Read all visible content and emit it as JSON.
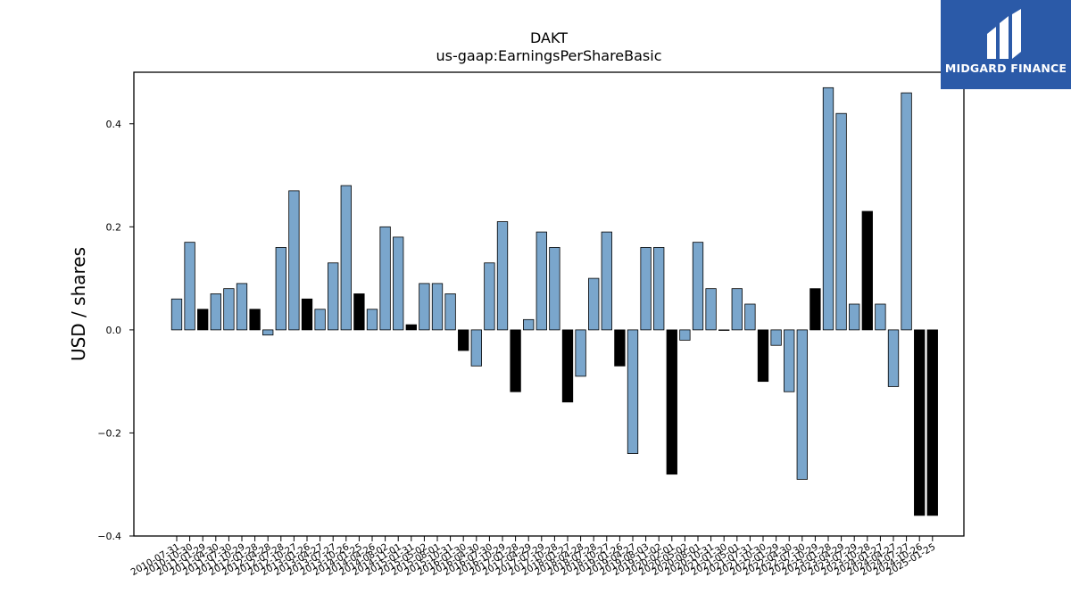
{
  "brand": {
    "name": "MIDGARD FINANCE",
    "bg_color": "#2b5aa8"
  },
  "chart_data": {
    "type": "bar",
    "title": "DAKT",
    "subtitle": "us-gaap:EarningsPerShareBasic",
    "xlabel": "",
    "ylabel": "USD / shares",
    "ylim": [
      -0.4,
      0.5
    ],
    "yticks": [
      -0.4,
      -0.2,
      0.0,
      0.2,
      0.4
    ],
    "ytick_labels": [
      "−0.4",
      "−0.2",
      "0.0",
      "0.2",
      "0.4"
    ],
    "grid": false,
    "colors": {
      "quarterly": "#7aa6cc",
      "annual": "#000000",
      "edge": "#000000"
    },
    "categories": [
      "2010-07-31",
      "2010-10-30",
      "2011-01-29",
      "2011-04-30",
      "2011-07-30",
      "2011-10-29",
      "2012-01-28",
      "2012-04-28",
      "2012-07-28",
      "2012-10-27",
      "2013-01-26",
      "2013-04-27",
      "2013-07-27",
      "2013-10-26",
      "2014-01-25",
      "2014-04-26",
      "2014-08-02",
      "2014-11-01",
      "2015-01-31",
      "2015-05-02",
      "2015-08-01",
      "2015-10-31",
      "2016-01-30",
      "2016-04-30",
      "2016-07-30",
      "2016-10-29",
      "2017-01-28",
      "2017-04-29",
      "2017-07-29",
      "2017-10-28",
      "2018-01-27",
      "2018-04-28",
      "2018-07-28",
      "2018-10-27",
      "2019-01-26",
      "2019-04-27",
      "2019-08-03",
      "2019-11-02",
      "2020-02-01",
      "2020-05-02",
      "2020-08-01",
      "2020-10-31",
      "2021-01-30",
      "2021-05-01",
      "2021-07-31",
      "2021-10-30",
      "2022-01-29",
      "2022-04-30",
      "2022-07-30",
      "2022-10-29",
      "2023-01-28",
      "2023-04-29",
      "2023-07-29",
      "2023-10-28",
      "2024-01-27",
      "2024-04-27",
      "2024-07-27",
      "2024-10-26",
      "2025-01-25"
    ],
    "series": [
      {
        "values": [
          0.06,
          0.17,
          0.04,
          0.07,
          0.08,
          0.09,
          0.04,
          -0.01,
          0.16,
          0.27,
          0.06,
          0.04,
          0.13,
          0.28,
          0.07,
          0.04,
          0.2,
          0.18,
          0.01,
          0.09,
          0.09,
          0.07,
          -0.04,
          -0.07,
          0.13,
          0.21,
          -0.12,
          0.02,
          0.19,
          0.16,
          -0.14,
          -0.09,
          0.1,
          0.19,
          -0.07,
          -0.24,
          0.16,
          0.16,
          -0.28,
          -0.02,
          0.17,
          0.08,
          0.0,
          0.08,
          0.05,
          -0.1,
          -0.03,
          -0.12,
          -0.29,
          0.08,
          0.47,
          0.42,
          0.05,
          0.23,
          0.05,
          -0.11,
          0.46,
          -0.36,
          -0.36
        ],
        "annual": [
          0,
          0,
          1,
          0,
          0,
          0,
          1,
          0,
          0,
          0,
          1,
          0,
          0,
          0,
          1,
          0,
          0,
          0,
          1,
          0,
          0,
          0,
          1,
          0,
          0,
          0,
          1,
          0,
          0,
          0,
          1,
          0,
          0,
          0,
          1,
          0,
          0,
          0,
          1,
          0,
          0,
          0,
          1,
          0,
          0,
          1,
          0,
          0,
          0,
          1,
          0,
          0,
          0,
          1,
          0,
          0,
          0,
          1,
          1
        ]
      }
    ]
  }
}
